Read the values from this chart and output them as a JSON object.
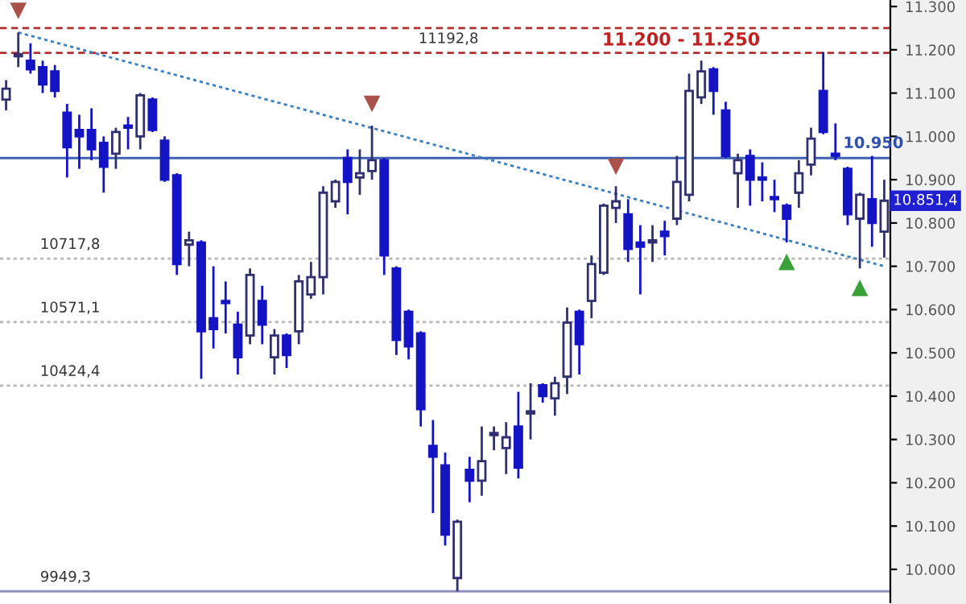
{
  "chart_data": {
    "type": "candlestick",
    "categories": [
      null,
      null,
      null,
      null,
      null,
      null,
      null,
      null,
      null,
      null,
      null,
      null,
      null,
      null,
      null,
      null,
      null,
      null,
      null,
      null,
      null,
      null,
      null,
      null,
      null,
      null,
      null,
      null,
      null,
      null,
      null,
      null,
      null,
      null,
      null,
      null,
      null,
      null,
      null,
      null,
      null,
      null,
      null,
      null,
      null,
      null,
      null,
      null,
      null,
      null,
      null,
      null,
      null,
      null,
      null,
      null,
      null,
      null,
      null,
      null,
      null,
      null,
      null,
      null,
      null,
      null,
      null,
      null,
      null,
      null,
      null,
      null,
      null
    ],
    "ohlc": [
      [
        11085,
        11130,
        11060,
        11110
      ],
      [
        11190,
        11240,
        11160,
        11185
      ],
      [
        11175,
        11215,
        11145,
        11155
      ],
      [
        11160,
        11175,
        11100,
        11120
      ],
      [
        11150,
        11165,
        11090,
        11105
      ],
      [
        11055,
        11075,
        10905,
        10975
      ],
      [
        11015,
        11050,
        10925,
        11000
      ],
      [
        11015,
        11065,
        10945,
        10970
      ],
      [
        10985,
        11000,
        10870,
        10930
      ],
      [
        10960,
        11020,
        10925,
        11010
      ],
      [
        11025,
        11045,
        10970,
        11020
      ],
      [
        11000,
        11100,
        10970,
        11095
      ],
      [
        11085,
        11090,
        11010,
        11015
      ],
      [
        10990,
        11000,
        10895,
        10900
      ],
      [
        10910,
        10915,
        10680,
        10705
      ],
      [
        10750,
        10780,
        10700,
        10760
      ],
      [
        10755,
        10760,
        10440,
        10550
      ],
      [
        10580,
        10700,
        10510,
        10555
      ],
      [
        10620,
        10665,
        10545,
        10615
      ],
      [
        10565,
        10595,
        10450,
        10490
      ],
      [
        10540,
        10695,
        10520,
        10680
      ],
      [
        10620,
        10655,
        10520,
        10565
      ],
      [
        10490,
        10555,
        10450,
        10540
      ],
      [
        10540,
        10545,
        10465,
        10495
      ],
      [
        10550,
        10680,
        10520,
        10665
      ],
      [
        10635,
        10710,
        10625,
        10675
      ],
      [
        10675,
        10885,
        10635,
        10870
      ],
      [
        10850,
        10900,
        10835,
        10895
      ],
      [
        10950,
        10970,
        10820,
        10895
      ],
      [
        10905,
        10970,
        10865,
        10915
      ],
      [
        10920,
        11025,
        10900,
        10945
      ],
      [
        10945,
        10950,
        10680,
        10725
      ],
      [
        10695,
        10700,
        10495,
        10530
      ],
      [
        10595,
        10600,
        10485,
        10515
      ],
      [
        10545,
        10550,
        10330,
        10370
      ],
      [
        10285,
        10345,
        10130,
        10260
      ],
      [
        10240,
        10270,
        10055,
        10080
      ],
      [
        9980,
        10115,
        9949.3,
        10110
      ],
      [
        10230,
        10260,
        10155,
        10205
      ],
      [
        10205,
        10330,
        10170,
        10250
      ],
      [
        10310,
        10330,
        10275,
        10315
      ],
      [
        10280,
        10340,
        10220,
        10305
      ],
      [
        10330,
        10410,
        10210,
        10235
      ],
      [
        10360,
        10430,
        10300,
        10365
      ],
      [
        10425,
        10430,
        10385,
        10400
      ],
      [
        10395,
        10445,
        10355,
        10430
      ],
      [
        10445,
        10605,
        10405,
        10570
      ],
      [
        10595,
        10600,
        10450,
        10520
      ],
      [
        10620,
        10725,
        10580,
        10705
      ],
      [
        10685,
        10845,
        10680,
        10840
      ],
      [
        10835,
        10885,
        10800,
        10850
      ],
      [
        10820,
        10855,
        10710,
        10740
      ],
      [
        10755,
        10795,
        10635,
        10745
      ],
      [
        10755,
        10795,
        10710,
        10760
      ],
      [
        10780,
        10805,
        10725,
        10770
      ],
      [
        10810,
        10955,
        10795,
        10895
      ],
      [
        10865,
        11145,
        10850,
        11105
      ],
      [
        11090,
        11175,
        11075,
        11150
      ],
      [
        11155,
        11160,
        11050,
        11105
      ],
      [
        11060,
        11080,
        10950,
        10955
      ],
      [
        10915,
        10960,
        10835,
        10945
      ],
      [
        10955,
        10970,
        10840,
        10900
      ],
      [
        10905,
        10940,
        10850,
        10900
      ],
      [
        10860,
        10900,
        10825,
        10855
      ],
      [
        10840,
        10845,
        10755,
        10810
      ],
      [
        10870,
        10945,
        10835,
        10915
      ],
      [
        10935,
        11020,
        10910,
        10995
      ],
      [
        11105,
        11195,
        11005,
        11010
      ],
      [
        10960,
        11030,
        10945,
        10955
      ],
      [
        10925,
        10930,
        10795,
        10820
      ],
      [
        10810,
        10870,
        10695,
        10865
      ],
      [
        10855,
        10955,
        10745,
        10800
      ],
      [
        10780,
        10900,
        10720,
        10851.4
      ]
    ],
    "colors": [
      "#ffffff",
      "#ffffff",
      "#1414c4",
      "#1414c4",
      "#1414c4",
      "#1414c4",
      "#1414c4",
      "#1414c4",
      "#1414c4",
      "#ffffff",
      "#1414c4",
      "#ffffff",
      "#1414c4",
      "#1414c4",
      "#1414c4",
      "#ffffff",
      "#1414c4",
      "#1414c4",
      "#1414c4",
      "#1414c4",
      "#ffffff",
      "#1414c4",
      "#ffffff",
      "#1414c4",
      "#ffffff",
      "#ffffff",
      "#ffffff",
      "#ffffff",
      "#1414c4",
      "#ffffff",
      "#ffffff",
      "#1414c4",
      "#1414c4",
      "#1414c4",
      "#1414c4",
      "#1414c4",
      "#1414c4",
      "#ffffff",
      "#1414c4",
      "#ffffff",
      "#ffffff",
      "#ffffff",
      "#1414c4",
      "#ffffff",
      "#1414c4",
      "#ffffff",
      "#ffffff",
      "#1414c4",
      "#ffffff",
      "#ffffff",
      "#ffffff",
      "#1414c4",
      "#1414c4",
      "#ffffff",
      "#1414c4",
      "#ffffff",
      "#ffffff",
      "#ffffff",
      "#1414c4",
      "#1414c4",
      "#ffffff",
      "#1414c4",
      "#1414c4",
      "#1414c4",
      "#1414c4",
      "#ffffff",
      "#ffffff",
      "#1414c4",
      "#1414c4",
      "#1414c4",
      "#ffffff",
      "#1414c4",
      "#ffffff"
    ],
    "series": [
      {
        "type": "line",
        "color": "#3a7fc0",
        "line_style": "dotted",
        "values": [
          null,
          11240,
          null,
          null,
          null,
          null,
          null,
          null,
          null,
          null,
          null,
          null,
          null,
          null,
          null,
          null,
          null,
          null,
          null,
          null,
          null,
          null,
          null,
          null,
          null,
          null,
          null,
          null,
          null,
          null,
          null,
          null,
          null,
          null,
          null,
          null,
          null,
          null,
          null,
          null,
          null,
          null,
          null,
          null,
          null,
          null,
          null,
          null,
          null,
          null,
          null,
          null,
          null,
          null,
          null,
          null,
          null,
          null,
          null,
          null,
          null,
          null,
          null,
          null,
          null,
          null,
          null,
          null,
          null,
          null,
          null,
          null,
          10700
        ]
      },
      {
        "type": "scatter",
        "color": "#a8524a",
        "marker": "triangle",
        "values": [
          null,
          11290,
          null,
          null,
          null,
          null,
          null,
          null,
          null,
          null,
          null,
          null,
          null,
          null,
          null,
          null,
          null,
          null,
          null,
          null,
          null,
          null,
          null,
          null,
          null,
          null,
          null,
          null,
          null,
          null,
          11075,
          null,
          null,
          null,
          null,
          null,
          null,
          null,
          null,
          null,
          null,
          null,
          null,
          null,
          null,
          null,
          null,
          null,
          null,
          null,
          10930,
          null,
          null,
          null,
          null,
          null,
          null,
          null,
          null,
          null,
          null,
          null,
          null,
          null,
          null,
          null,
          null,
          null,
          null,
          null,
          null,
          null,
          null
        ]
      },
      {
        "type": "scatter",
        "color": "#3aa03a",
        "marker": "triangle",
        "values": [
          null,
          null,
          null,
          null,
          null,
          null,
          null,
          null,
          null,
          null,
          null,
          null,
          null,
          null,
          null,
          null,
          null,
          null,
          null,
          null,
          null,
          null,
          null,
          null,
          null,
          null,
          null,
          null,
          null,
          null,
          null,
          null,
          null,
          null,
          null,
          null,
          null,
          null,
          null,
          null,
          null,
          null,
          null,
          null,
          null,
          null,
          null,
          null,
          null,
          null,
          null,
          null,
          null,
          null,
          null,
          null,
          null,
          null,
          null,
          null,
          null,
          null,
          null,
          null,
          10710,
          null,
          null,
          null,
          null,
          null,
          10650,
          null,
          null
        ]
      }
    ],
    "ylim": [
      9920,
      11315
    ],
    "yticks": [
      {
        "value": 10000,
        "label": "10.000"
      },
      {
        "value": 10100,
        "label": "10.100"
      },
      {
        "value": 10200,
        "label": "10.200"
      },
      {
        "value": 10300,
        "label": "10.300"
      },
      {
        "value": 10400,
        "label": "10.400"
      },
      {
        "value": 10500,
        "label": "10.500"
      },
      {
        "value": 10600,
        "label": "10.600"
      },
      {
        "value": 10700,
        "label": "10.700"
      },
      {
        "value": 10800,
        "label": "10.800"
      },
      {
        "value": 10900,
        "label": "10.900"
      },
      {
        "value": 11000,
        "label": "11.000"
      },
      {
        "value": 11100,
        "label": "11.100"
      },
      {
        "value": 11200,
        "label": "11.200"
      },
      {
        "value": 11300,
        "label": "11.300"
      }
    ],
    "ref_lines": [
      {
        "axis": "y",
        "value": 11250,
        "label": null,
        "color": "#b03030",
        "line_style": "dashed"
      },
      {
        "axis": "y",
        "value": 11192.8,
        "label": "11192,8",
        "color": "#b03030",
        "line_style": "dashed"
      },
      {
        "axis": "y",
        "value": 10950,
        "label": "10.950",
        "color": "#4060b0",
        "line_style": "solid"
      },
      {
        "axis": "y",
        "value": 10717.8,
        "label": "10717,8",
        "color": "#b8b8b8",
        "line_style": "dotted"
      },
      {
        "axis": "y",
        "value": 10571.1,
        "label": "10571,1",
        "color": "#b8b8b8",
        "line_style": "dotted"
      },
      {
        "axis": "y",
        "value": 10424.4,
        "label": "10424,4",
        "color": "#b8b8b8",
        "line_style": "dotted"
      },
      {
        "axis": "y",
        "value": 9949.3,
        "label": "9949,3",
        "color": "#9090c0",
        "line_style": "solid"
      }
    ],
    "annotations": [
      "11.200 - 11.250",
      "10.851,4"
    ],
    "grid": false,
    "legend": false
  }
}
